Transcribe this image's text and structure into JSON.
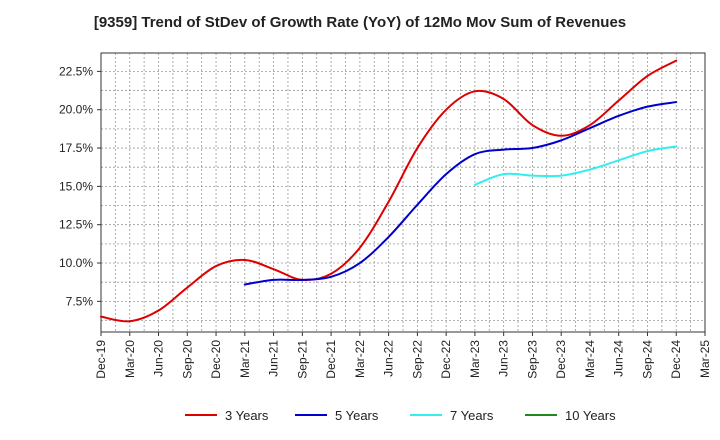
{
  "chart_data": {
    "type": "line",
    "title": "[9359]  Trend of StDev of Growth Rate (YoY) of 12Mo Mov Sum of Revenues",
    "xlabel": "",
    "ylabel": "",
    "grid": true,
    "legend_position": "bottom",
    "x_ticks": [
      "Dec-19",
      "Mar-20",
      "Jun-20",
      "Sep-20",
      "Dec-20",
      "Mar-21",
      "Jun-21",
      "Sep-21",
      "Dec-21",
      "Mar-22",
      "Jun-22",
      "Sep-22",
      "Dec-22",
      "Mar-23",
      "Jun-23",
      "Sep-23",
      "Dec-23",
      "Mar-24",
      "Jun-24",
      "Sep-24",
      "Dec-24",
      "Mar-25"
    ],
    "y_ticks": [
      "7.5%",
      "10.0%",
      "12.5%",
      "15.0%",
      "17.5%",
      "20.0%",
      "22.5%"
    ],
    "y_tick_values": [
      7.5,
      10.0,
      12.5,
      15.0,
      17.5,
      20.0,
      22.5
    ],
    "ylim": [
      5.5,
      23.7
    ],
    "series": [
      {
        "name": "3 Years",
        "color": "#dd0000",
        "values": [
          6.5,
          6.2,
          6.9,
          8.4,
          9.8,
          10.2,
          9.6,
          8.9,
          9.3,
          11.0,
          14.0,
          17.5,
          20.0,
          21.2,
          20.7,
          19.0,
          18.3,
          19.0,
          20.6,
          22.2,
          23.2,
          null
        ]
      },
      {
        "name": "5 Years",
        "color": "#0000cc",
        "values": [
          null,
          null,
          null,
          null,
          null,
          8.6,
          8.9,
          8.9,
          9.1,
          10.0,
          11.7,
          13.8,
          15.8,
          17.1,
          17.4,
          17.5,
          18.0,
          18.8,
          19.6,
          20.2,
          20.5,
          null
        ]
      },
      {
        "name": "7 Years",
        "color": "#33eeee",
        "values": [
          null,
          null,
          null,
          null,
          null,
          null,
          null,
          null,
          null,
          null,
          null,
          null,
          null,
          15.1,
          15.8,
          15.7,
          15.7,
          16.1,
          16.7,
          17.3,
          17.6,
          null
        ]
      },
      {
        "name": "10 Years",
        "color": "#228822",
        "values": [
          null,
          null,
          null,
          null,
          null,
          null,
          null,
          null,
          null,
          null,
          null,
          null,
          null,
          null,
          null,
          null,
          null,
          null,
          null,
          null,
          null,
          null
        ]
      }
    ]
  }
}
